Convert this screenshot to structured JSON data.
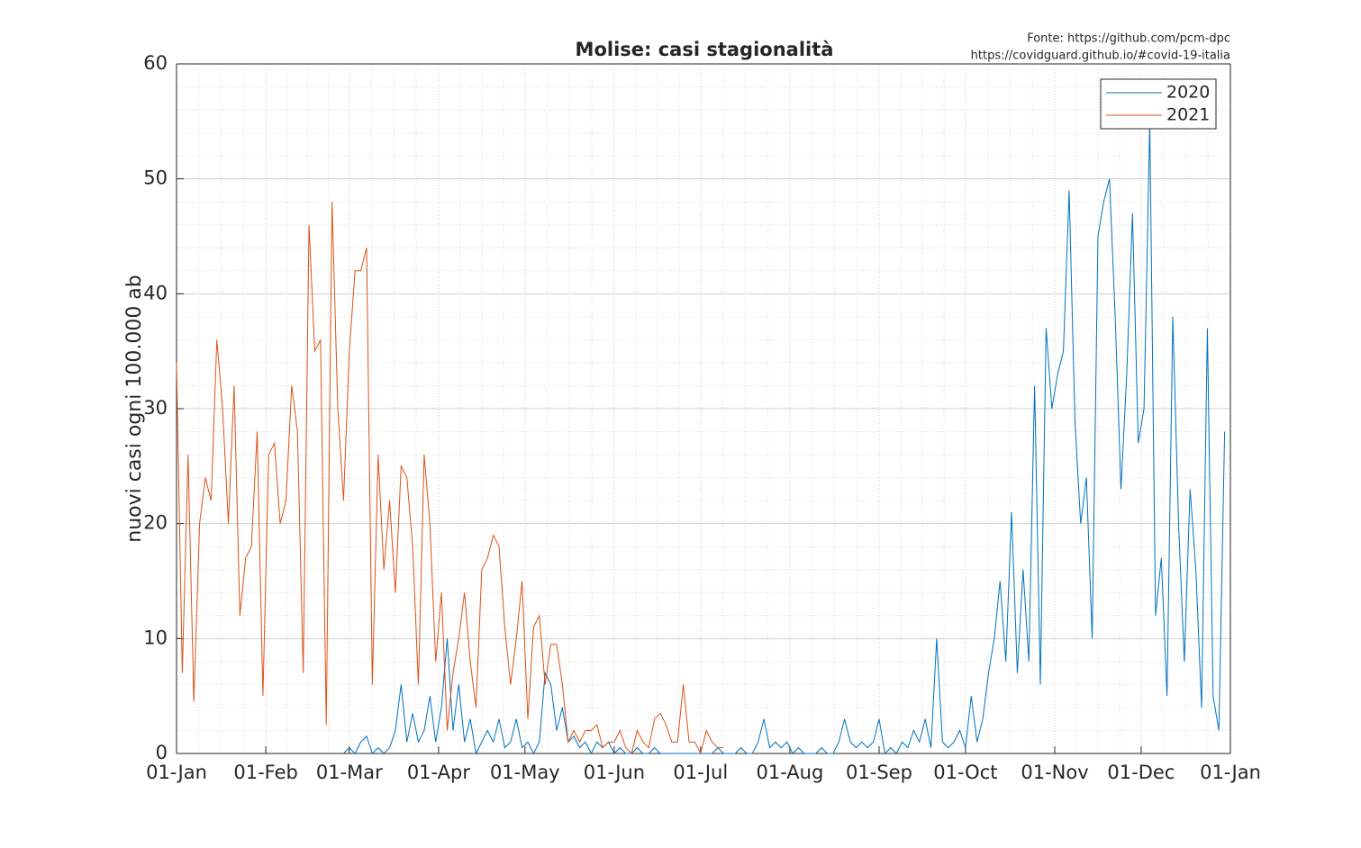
{
  "chart_data": {
    "type": "line",
    "title": "Molise: casi stagionalità",
    "y_label": "nuovi casi ogni 100.000 ab",
    "annotations": [
      "Fonte: https://github.com/pcm-dpc",
      "https://covidguard.github.io/#covid-19-italia"
    ],
    "x": [
      0,
      2,
      4,
      6,
      8,
      10,
      12,
      14,
      16,
      18,
      20,
      22,
      24,
      26,
      28,
      30,
      32,
      34,
      36,
      38,
      40,
      42,
      44,
      46,
      48,
      50,
      52,
      54,
      56,
      58,
      60,
      62,
      64,
      66,
      68,
      70,
      72,
      74,
      76,
      78,
      80,
      82,
      84,
      86,
      88,
      90,
      92,
      94,
      96,
      98,
      100,
      102,
      104,
      106,
      108,
      110,
      112,
      114,
      116,
      118,
      120,
      122,
      124,
      126,
      128,
      130,
      132,
      134,
      136,
      138,
      140,
      142,
      144,
      146,
      148,
      150,
      152,
      154,
      156,
      158,
      160,
      162,
      164,
      166,
      168,
      170,
      172,
      174,
      176,
      178,
      180,
      182,
      184,
      186,
      188,
      190,
      192,
      194,
      196,
      198,
      200,
      202,
      204,
      206,
      208,
      210,
      212,
      214,
      216,
      218,
      220,
      222,
      224,
      226,
      228,
      230,
      232,
      234,
      236,
      238,
      240,
      242,
      244,
      246,
      248,
      250,
      252,
      254,
      256,
      258,
      260,
      262,
      264,
      266,
      268,
      270,
      272,
      274,
      276,
      278,
      280,
      282,
      284,
      286,
      288,
      290,
      292,
      294,
      296,
      298,
      300,
      302,
      304,
      306,
      308,
      310,
      312,
      314,
      316,
      318,
      320,
      322,
      324,
      326,
      328,
      330,
      332,
      334,
      336,
      338,
      340,
      342,
      344,
      346,
      348,
      350,
      352,
      354,
      356,
      358,
      360,
      362,
      364
    ],
    "series": [
      {
        "name": "2020",
        "color": "#0072bd",
        "values": [
          null,
          null,
          null,
          null,
          null,
          null,
          null,
          null,
          null,
          null,
          null,
          null,
          null,
          null,
          null,
          null,
          null,
          null,
          null,
          null,
          null,
          null,
          null,
          null,
          null,
          null,
          null,
          null,
          null,
          0,
          0.5,
          0,
          1,
          1.5,
          0,
          0.5,
          0,
          0.5,
          2,
          6,
          1,
          3.5,
          1,
          2,
          5,
          1,
          4,
          10,
          2,
          6,
          1,
          3,
          0,
          1,
          2,
          1,
          3,
          0.5,
          1,
          3,
          0.5,
          1,
          0,
          1,
          7,
          6,
          2,
          4,
          1,
          1.5,
          0.5,
          1,
          0,
          1,
          0.5,
          1,
          0,
          0.5,
          0,
          0,
          0.5,
          0,
          0,
          0.5,
          0,
          0,
          0,
          0,
          0,
          0,
          0,
          0,
          0,
          0,
          0.5,
          0,
          0,
          0,
          0.5,
          0,
          0,
          1,
          3,
          0.5,
          1,
          0.5,
          1,
          0,
          0.5,
          0,
          0,
          0,
          0.5,
          0,
          0,
          1,
          3,
          1,
          0.5,
          1,
          0.5,
          1,
          3,
          0,
          0.5,
          0,
          1,
          0.5,
          2,
          1,
          3,
          0.5,
          10,
          1,
          0.5,
          1,
          2,
          0.5,
          5,
          1,
          3,
          7,
          10,
          15,
          8,
          21,
          7,
          16,
          8,
          32,
          6,
          37,
          30,
          33,
          35,
          49,
          29,
          20,
          24,
          10,
          45,
          48,
          50,
          38,
          23,
          33,
          47,
          27,
          30,
          55,
          12,
          17,
          5,
          38,
          20,
          8,
          23,
          16,
          4,
          37,
          5,
          2,
          28
        ]
      },
      {
        "name": "2021",
        "color": "#d95319",
        "values": [
          34,
          7,
          26,
          4.5,
          20,
          24,
          22,
          36,
          30,
          20,
          32,
          12,
          17,
          18,
          28,
          5,
          26,
          27,
          20,
          22,
          32,
          28,
          7,
          46,
          35,
          36,
          2.5,
          48,
          30,
          22,
          35,
          42,
          42,
          44,
          6,
          26,
          16,
          22,
          14,
          25,
          24,
          18,
          6,
          26,
          20,
          8,
          14,
          2,
          7,
          10,
          14,
          8,
          4,
          16,
          17,
          19,
          18,
          11,
          6,
          10,
          15,
          3,
          11,
          12,
          6,
          9.5,
          9.5,
          6,
          1,
          2,
          1,
          2,
          2,
          2.5,
          0.5,
          1,
          1,
          2,
          0.5,
          0,
          2,
          1,
          0.5,
          3,
          3.5,
          2.5,
          1,
          1,
          6,
          1,
          1,
          0,
          2,
          1,
          0.5,
          0.5,
          null,
          null,
          null,
          null,
          null,
          null,
          null,
          null,
          null,
          null,
          null,
          null,
          null,
          null,
          null,
          null,
          null,
          null,
          null,
          null,
          null,
          null,
          null,
          null,
          null,
          null,
          null,
          null,
          null,
          null,
          null,
          null,
          null,
          null,
          null,
          null,
          null,
          null,
          null,
          null,
          null,
          null,
          null,
          null,
          null,
          null,
          null,
          null,
          null,
          null,
          null,
          null,
          null,
          null,
          null,
          null,
          null,
          null,
          null,
          null,
          null,
          null,
          null,
          null,
          null,
          null,
          null,
          null,
          null,
          null,
          null,
          null,
          null,
          null,
          null,
          null,
          null,
          null,
          null,
          null,
          null,
          null,
          null,
          null,
          null,
          null,
          null
        ]
      }
    ],
    "xlim": [
      0,
      366
    ],
    "xticks": [
      {
        "value": 0,
        "label": "01-Jan"
      },
      {
        "value": 31,
        "label": "01-Feb"
      },
      {
        "value": 60,
        "label": "01-Mar"
      },
      {
        "value": 91,
        "label": "01-Apr"
      },
      {
        "value": 121,
        "label": "01-May"
      },
      {
        "value": 152,
        "label": "01-Jun"
      },
      {
        "value": 182,
        "label": "01-Jul"
      },
      {
        "value": 213,
        "label": "01-Aug"
      },
      {
        "value": 244,
        "label": "01-Sep"
      },
      {
        "value": 274,
        "label": "01-Oct"
      },
      {
        "value": 305,
        "label": "01-Nov"
      },
      {
        "value": 335,
        "label": "01-Dec"
      },
      {
        "value": 366,
        "label": "01-Jan"
      }
    ],
    "ylim": [
      0,
      60
    ],
    "yticks": [
      0,
      10,
      20,
      30,
      40,
      50,
      60
    ],
    "grid": true,
    "minor_grid": true,
    "legend": "northeast"
  }
}
